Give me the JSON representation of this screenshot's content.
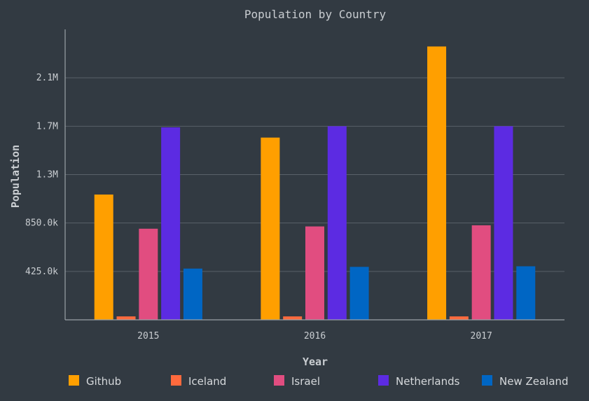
{
  "chart_data": {
    "type": "bar",
    "title": "Population by Country",
    "xlabel": "Year",
    "ylabel": "Population",
    "categories": [
      "2015",
      "2016",
      "2017"
    ],
    "yticks": [
      {
        "value": 425000,
        "label": "425.0k"
      },
      {
        "value": 850000,
        "label": "850.0k"
      },
      {
        "value": 1275000,
        "label": "1.3M"
      },
      {
        "value": 1700000,
        "label": "1.7M"
      },
      {
        "value": 2125000,
        "label": "2.1M"
      }
    ],
    "ylim": [
      0,
      2550000
    ],
    "grid": true,
    "legend_position": "bottom",
    "series": [
      {
        "name": "Github",
        "color": "#ff9f00",
        "values": [
          1100000,
          1600000,
          2400000
        ]
      },
      {
        "name": "Iceland",
        "color": "#ff6a3d",
        "values": [
          30000,
          30000,
          30000
        ]
      },
      {
        "name": "Israel",
        "color": "#e14d80",
        "values": [
          800000,
          820000,
          830000
        ]
      },
      {
        "name": "Netherlands",
        "color": "#5c2be2",
        "values": [
          1690000,
          1700000,
          1700000
        ]
      },
      {
        "name": "New Zealand",
        "color": "#0066c4",
        "values": [
          450000,
          465000,
          470000
        ]
      }
    ]
  }
}
